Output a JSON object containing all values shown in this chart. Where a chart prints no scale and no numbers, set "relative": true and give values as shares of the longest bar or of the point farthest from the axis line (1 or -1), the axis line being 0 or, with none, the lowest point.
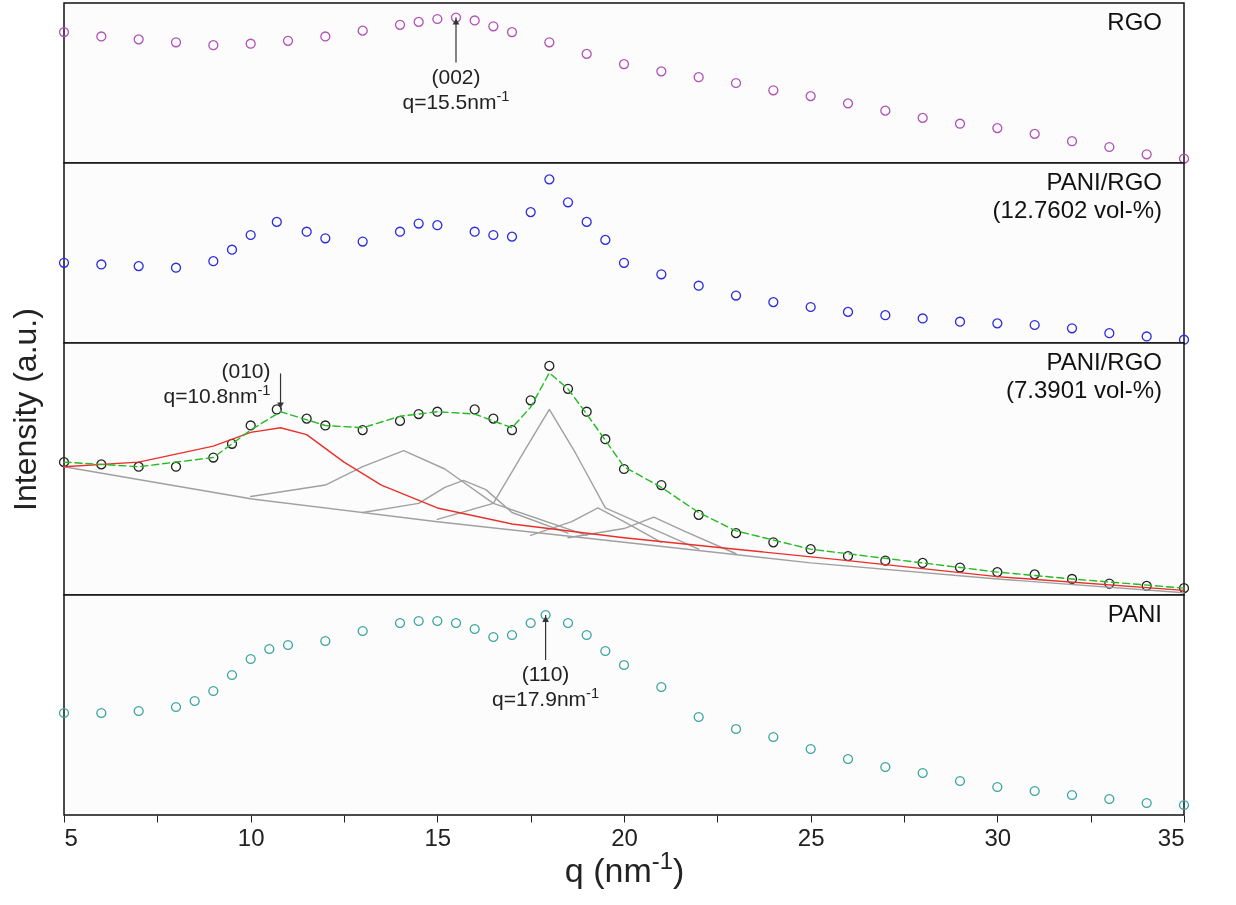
{
  "chart_data": [
    {
      "type": "scatter",
      "relative": true,
      "marker": "circle",
      "xlim": [
        5,
        35
      ],
      "xticks": [
        5,
        10,
        15,
        20,
        25,
        30,
        35
      ],
      "tick_labels": false,
      "series": [
        {
          "name": "RGO",
          "color": "#b050b8",
          "x": [
            5,
            6,
            7,
            8,
            9,
            10,
            11,
            12,
            13,
            14,
            14.5,
            15,
            15.5,
            16,
            16.5,
            17,
            18,
            19,
            20,
            21,
            22,
            23,
            24,
            25,
            26,
            27,
            28,
            29,
            30,
            31,
            32,
            33,
            34,
            35
          ],
          "values": [
            0.9,
            0.87,
            0.85,
            0.83,
            0.81,
            0.82,
            0.84,
            0.87,
            0.91,
            0.95,
            0.97,
            0.99,
            1.0,
            0.98,
            0.94,
            0.9,
            0.83,
            0.75,
            0.68,
            0.63,
            0.59,
            0.55,
            0.5,
            0.46,
            0.41,
            0.36,
            0.31,
            0.27,
            0.24,
            0.2,
            0.15,
            0.11,
            0.06,
            0.03
          ]
        }
      ],
      "annotations": [
        {
          "text": "(002)\nq=15.5nm$^{-1}$",
          "x": 15.5,
          "y": 1.0
        }
      ]
    },
    {
      "type": "scatter",
      "relative": true,
      "marker": "circle",
      "xlim": [
        5,
        35
      ],
      "xticks": [
        5,
        10,
        15,
        20,
        25,
        30,
        35
      ],
      "tick_labels": false,
      "series": [
        {
          "name": "PANI/RGO\n(12.7602 vol-%)",
          "color": "#2a2ae0",
          "x": [
            5,
            6,
            7,
            8,
            9,
            9.5,
            10,
            10.7,
            11.5,
            12,
            13,
            14,
            14.5,
            15,
            16,
            16.5,
            17,
            17.5,
            18,
            18.5,
            19,
            19.5,
            20,
            21,
            22,
            23,
            24,
            25,
            26,
            27,
            28,
            29,
            30,
            31,
            32,
            33,
            34,
            35
          ],
          "values": [
            0.49,
            0.48,
            0.47,
            0.46,
            0.5,
            0.57,
            0.66,
            0.74,
            0.68,
            0.64,
            0.62,
            0.68,
            0.73,
            0.72,
            0.68,
            0.66,
            0.65,
            0.8,
            1.0,
            0.86,
            0.74,
            0.63,
            0.49,
            0.42,
            0.35,
            0.29,
            0.25,
            0.22,
            0.19,
            0.17,
            0.15,
            0.13,
            0.12,
            0.11,
            0.09,
            0.06,
            0.04,
            0.02
          ]
        }
      ]
    },
    {
      "type": "scatter",
      "relative": true,
      "xlim": [
        5,
        35
      ],
      "xticks": [
        5,
        10,
        15,
        20,
        25,
        30,
        35
      ],
      "tick_labels": false,
      "ylabel": "Intensity (a.u.)",
      "series": [
        {
          "name": "PANI/RGO\n(7.3901 vol-%)",
          "color": "#222222",
          "marker": "circle",
          "x": [
            5,
            6,
            7,
            8,
            9,
            9.5,
            10,
            10.7,
            11.5,
            12,
            13,
            14,
            14.5,
            15,
            16,
            16.5,
            17,
            17.5,
            18,
            18.5,
            19,
            19.5,
            20,
            21,
            22,
            23,
            24,
            25,
            26,
            27,
            28,
            29,
            30,
            31,
            32,
            33,
            34,
            35
          ],
          "values": [
            0.58,
            0.57,
            0.56,
            0.56,
            0.6,
            0.66,
            0.74,
            0.81,
            0.77,
            0.74,
            0.72,
            0.76,
            0.79,
            0.8,
            0.81,
            0.77,
            0.72,
            0.85,
            1.0,
            0.9,
            0.8,
            0.68,
            0.55,
            0.48,
            0.35,
            0.27,
            0.23,
            0.2,
            0.17,
            0.15,
            0.14,
            0.12,
            0.1,
            0.09,
            0.07,
            0.05,
            0.04,
            0.03
          ]
        },
        {
          "type": "line",
          "color": "#a0a0a0",
          "x": [
            5,
            10,
            15,
            20,
            25,
            30,
            35
          ],
          "values": [
            0.56,
            0.42,
            0.32,
            0.23,
            0.14,
            0.07,
            0.01
          ]
        },
        {
          "type": "line",
          "color": "#a0a0a0",
          "x": [
            10,
            12,
            13,
            14.1,
            15.2,
            16.5,
            19
          ],
          "values": [
            0.43,
            0.48,
            0.56,
            0.63,
            0.55,
            0.4,
            0.26
          ]
        },
        {
          "type": "line",
          "color": "#a0a0a0",
          "x": [
            13,
            14.5,
            15.2,
            15.7,
            16.3,
            17,
            18.5
          ],
          "values": [
            0.36,
            0.4,
            0.47,
            0.5,
            0.46,
            0.36,
            0.27
          ]
        },
        {
          "type": "line",
          "color": "#a0a0a0",
          "x": [
            15,
            16.5,
            17.3,
            18,
            18.7,
            19.5,
            22
          ],
          "values": [
            0.33,
            0.4,
            0.62,
            0.81,
            0.62,
            0.38,
            0.2
          ]
        },
        {
          "type": "line",
          "color": "#a0a0a0",
          "x": [
            17.5,
            18.6,
            19.3,
            20,
            21
          ],
          "values": [
            0.26,
            0.32,
            0.38,
            0.32,
            0.23
          ]
        },
        {
          "type": "line",
          "color": "#a0a0a0",
          "x": [
            18.5,
            20,
            20.8,
            21.6,
            23
          ],
          "values": [
            0.25,
            0.29,
            0.34,
            0.28,
            0.18
          ]
        },
        {
          "type": "line",
          "color": "#e8302a",
          "x": [
            5,
            7,
            9,
            10,
            10.8,
            11.5,
            12.5,
            13.5,
            15,
            17,
            20,
            23,
            26,
            30,
            35
          ],
          "values": [
            0.56,
            0.58,
            0.65,
            0.71,
            0.73,
            0.7,
            0.58,
            0.48,
            0.38,
            0.31,
            0.25,
            0.2,
            0.15,
            0.08,
            0.02
          ]
        },
        {
          "type": "line",
          "color": "#22bb22",
          "line_style": "dashed",
          "x": [
            5,
            7,
            9,
            10,
            10.8,
            12,
            13,
            14,
            15,
            16,
            17,
            17.5,
            18,
            18.5,
            19,
            20,
            21,
            22,
            23,
            25,
            28,
            30,
            32,
            35
          ],
          "values": [
            0.58,
            0.56,
            0.6,
            0.72,
            0.8,
            0.74,
            0.73,
            0.78,
            0.8,
            0.79,
            0.73,
            0.82,
            0.97,
            0.9,
            0.79,
            0.56,
            0.47,
            0.36,
            0.28,
            0.2,
            0.14,
            0.1,
            0.07,
            0.03
          ]
        }
      ],
      "annotations": [
        {
          "text": "(010)\nq=10.8nm$^{-1}$",
          "x": 10.8,
          "y": 0.81
        }
      ]
    },
    {
      "type": "scatter",
      "relative": true,
      "marker": "circle",
      "xlim": [
        5,
        35
      ],
      "xticks": [
        5,
        {
          "value": 7.5,
          "label": null
        },
        10,
        {
          "value": 12.5,
          "label": null
        },
        15,
        {
          "value": 17.5,
          "label": null
        },
        20,
        {
          "value": 22.5,
          "label": null
        },
        25,
        {
          "value": 27.5,
          "label": null
        },
        30,
        {
          "value": 32.5,
          "label": null
        },
        35
      ],
      "tick_labels": "x",
      "xlabel": "q (nm$^{-1}$)",
      "series": [
        {
          "name": "PANI",
          "color": "#3aa5a0",
          "x": [
            5,
            6,
            7,
            8,
            8.5,
            9,
            9.5,
            10,
            10.5,
            11,
            12,
            13,
            14,
            14.5,
            15,
            15.5,
            16,
            16.5,
            17,
            17.5,
            17.9,
            18.5,
            19,
            19.5,
            20,
            21,
            22,
            23,
            24,
            25,
            26,
            27,
            28,
            29,
            30,
            31,
            32,
            33,
            34,
            35
          ],
          "values": [
            0.51,
            0.51,
            0.52,
            0.54,
            0.57,
            0.62,
            0.7,
            0.78,
            0.83,
            0.85,
            0.87,
            0.92,
            0.96,
            0.97,
            0.97,
            0.96,
            0.93,
            0.89,
            0.9,
            0.96,
            1.0,
            0.96,
            0.9,
            0.82,
            0.75,
            0.64,
            0.49,
            0.43,
            0.39,
            0.33,
            0.28,
            0.24,
            0.21,
            0.17,
            0.14,
            0.12,
            0.1,
            0.08,
            0.06,
            0.05
          ]
        }
      ],
      "annotations": [
        {
          "text": "(110)\nq=17.9nm$^{-1}$",
          "x": 17.9,
          "y": 1.0
        }
      ]
    }
  ]
}
